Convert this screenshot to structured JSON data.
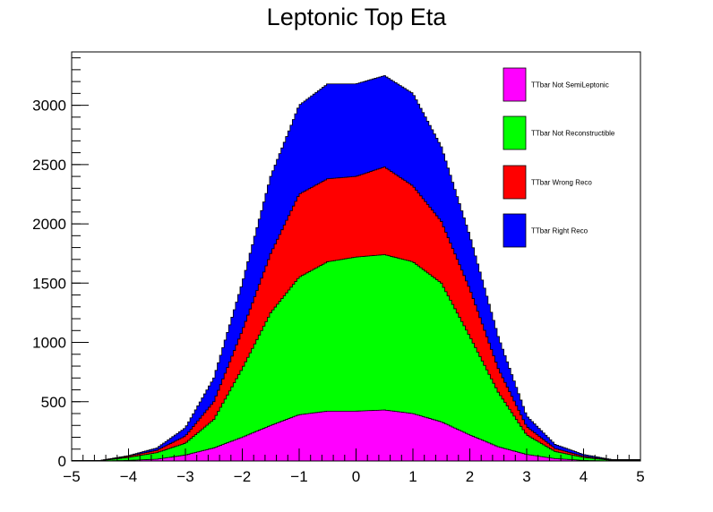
{
  "chart_data": {
    "type": "area",
    "title": "Leptonic Top Eta",
    "xlabel": "",
    "ylabel": "",
    "xlim": [
      -5,
      5
    ],
    "ylim": [
      0,
      3450
    ],
    "x_ticks": [
      "−5",
      "−4",
      "−3",
      "−2",
      "−1",
      "0",
      "1",
      "2",
      "3",
      "4",
      "5"
    ],
    "y_ticks": [
      "0",
      "500",
      "1000",
      "1500",
      "2000",
      "2500",
      "3000"
    ],
    "grid": false,
    "legend_position": "top-right",
    "stacked": true,
    "series": [
      {
        "name": "TTbar Not SemiLeptonic",
        "color": "#ff00ff",
        "points": [
          [
            -4.5,
            0
          ],
          [
            -4,
            5
          ],
          [
            -3.5,
            15
          ],
          [
            -3,
            50
          ],
          [
            -2.5,
            110
          ],
          [
            -2,
            200
          ],
          [
            -1.5,
            300
          ],
          [
            -1,
            390
          ],
          [
            -0.5,
            420
          ],
          [
            0,
            420
          ],
          [
            0.5,
            430
          ],
          [
            1,
            400
          ],
          [
            1.5,
            330
          ],
          [
            2,
            220
          ],
          [
            2.5,
            120
          ],
          [
            3,
            55
          ],
          [
            3.5,
            20
          ],
          [
            4,
            5
          ],
          [
            4.5,
            0
          ]
        ]
      },
      {
        "name": "TTbar Not Reconstructible",
        "color": "#00ff00",
        "points": [
          [
            -4.5,
            2
          ],
          [
            -4,
            30
          ],
          [
            -3.5,
            70
          ],
          [
            -3,
            150
          ],
          [
            -2.5,
            350
          ],
          [
            -2,
            780
          ],
          [
            -1.5,
            1250
          ],
          [
            -1,
            1550
          ],
          [
            -0.5,
            1680
          ],
          [
            0,
            1720
          ],
          [
            0.5,
            1740
          ],
          [
            1,
            1680
          ],
          [
            1.5,
            1500
          ],
          [
            2,
            1050
          ],
          [
            2.5,
            580
          ],
          [
            3,
            220
          ],
          [
            3.5,
            80
          ],
          [
            4,
            30
          ],
          [
            4.5,
            5
          ]
        ]
      },
      {
        "name": "TTbar Wrong Reco",
        "color": "#ff0000",
        "points": [
          [
            -4.5,
            3
          ],
          [
            -4,
            40
          ],
          [
            -3.5,
            90
          ],
          [
            -3,
            210
          ],
          [
            -2.5,
            500
          ],
          [
            -2,
            1100
          ],
          [
            -1.5,
            1750
          ],
          [
            -1,
            2250
          ],
          [
            -0.5,
            2380
          ],
          [
            0,
            2400
          ],
          [
            0.5,
            2480
          ],
          [
            1,
            2320
          ],
          [
            1.5,
            2020
          ],
          [
            2,
            1450
          ],
          [
            2.5,
            780
          ],
          [
            3,
            290
          ],
          [
            3.5,
            105
          ],
          [
            4,
            40
          ],
          [
            4.5,
            8
          ]
        ]
      },
      {
        "name": "TTbar Right Reco",
        "color": "#0000ff",
        "points": [
          [
            -4.5,
            5
          ],
          [
            -4,
            45
          ],
          [
            -3.5,
            110
          ],
          [
            -3,
            280
          ],
          [
            -2.5,
            700
          ],
          [
            -2,
            1500
          ],
          [
            -1.5,
            2400
          ],
          [
            -1,
            3000
          ],
          [
            -0.5,
            3180
          ],
          [
            0,
            3180
          ],
          [
            0.5,
            3250
          ],
          [
            1,
            3100
          ],
          [
            1.5,
            2650
          ],
          [
            2,
            1900
          ],
          [
            2.5,
            1050
          ],
          [
            3,
            380
          ],
          [
            3.5,
            140
          ],
          [
            4,
            55
          ],
          [
            4.5,
            12
          ]
        ]
      }
    ]
  }
}
